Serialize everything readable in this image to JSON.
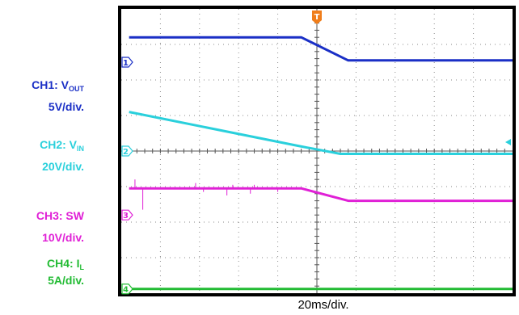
{
  "chart_data": {
    "type": "line",
    "title": "",
    "xlabel": "20ms/div.",
    "ylabel": "",
    "grid": true,
    "x_divisions": 10,
    "y_divisions": 8,
    "x_range_div": [
      0,
      10
    ],
    "y_range_div": [
      0,
      8
    ],
    "trigger_marker": "T",
    "series": [
      {
        "id": "ch1",
        "marker": "1",
        "channel": "CH1: V",
        "subscript": "OUT",
        "scale": "5V/div.",
        "color": "#1a2fc6",
        "ground_div": 6.5,
        "points": [
          [
            0.2,
            7.2
          ],
          [
            4.6,
            7.2
          ],
          [
            5.8,
            6.55
          ],
          [
            10,
            6.55
          ]
        ]
      },
      {
        "id": "ch2",
        "marker": "2",
        "channel": "CH2: V",
        "subscript": "IN",
        "scale": "20V/div.",
        "color": "#2ad0dc",
        "ground_div": 4.0,
        "points": [
          [
            0.2,
            5.1
          ],
          [
            4.5,
            4.15
          ],
          [
            5.6,
            3.92
          ],
          [
            10,
            3.92
          ]
        ]
      },
      {
        "id": "ch3",
        "marker": "3",
        "channel": "CH3: SW",
        "subscript": "",
        "scale": "10V/div.",
        "color": "#e020d6",
        "ground_div": 2.2,
        "points": [
          [
            0.2,
            2.95
          ],
          [
            4.6,
            2.95
          ],
          [
            5.8,
            2.6
          ],
          [
            10,
            2.6
          ]
        ],
        "spikes": [
          [
            0.35,
            3.2
          ],
          [
            0.55,
            2.35
          ],
          [
            1.9,
            3.1
          ],
          [
            2.1,
            2.85
          ],
          [
            2.7,
            2.75
          ],
          [
            2.85,
            3.05
          ],
          [
            3.3,
            2.8
          ],
          [
            3.4,
            3.05
          ],
          [
            4.0,
            2.85
          ]
        ]
      },
      {
        "id": "ch4",
        "marker": "4",
        "channel": "CH4: I",
        "subscript": "L",
        "scale": "5A/div.",
        "color": "#22bb33",
        "ground_div": 0.12,
        "points": [
          [
            0.2,
            0.12
          ],
          [
            10,
            0.12
          ]
        ]
      }
    ]
  }
}
